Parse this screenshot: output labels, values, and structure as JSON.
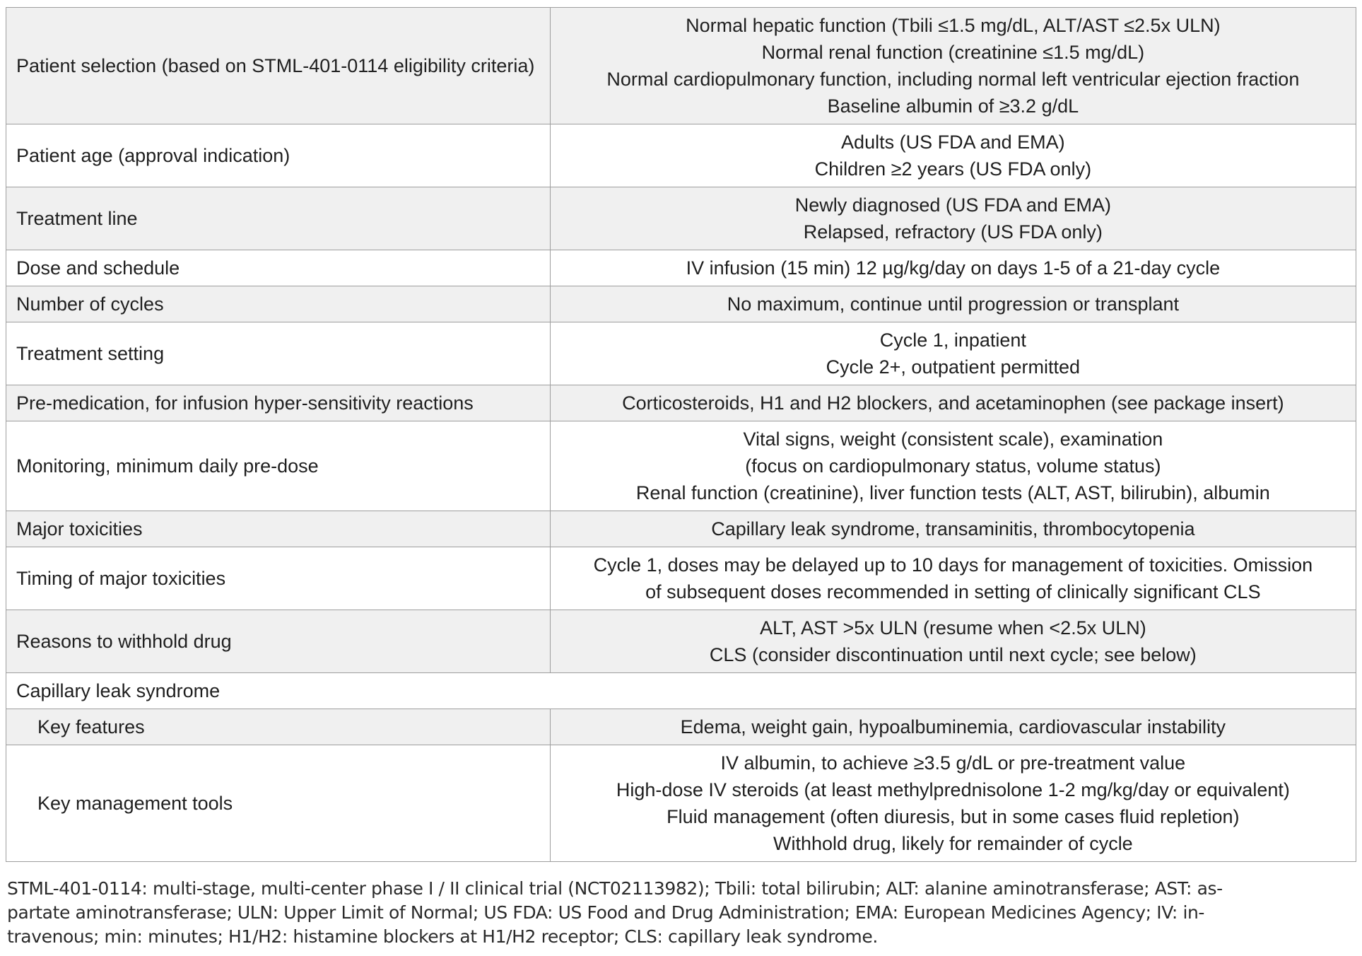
{
  "colors": {
    "row_stripe": "#f0f0f0",
    "row_plain": "#ffffff",
    "border": "#9e9e9e",
    "text": "#1f1f1f"
  },
  "table": {
    "rows": [
      {
        "label": "Patient selection (based on STML-401-0114 eligibility criteria)",
        "lines": [
          "Normal hepatic function (Tbili ≤1.5 mg/dL, ALT/AST ≤2.5x ULN)",
          "Normal renal function (creatinine ≤1.5 mg/dL)",
          "Normal cardiopulmonary function, including normal left ventricular ejection fraction",
          "Baseline albumin of ≥3.2 g/dL"
        ]
      },
      {
        "label": "Patient age (approval indication)",
        "lines": [
          "Adults (US FDA and EMA)",
          "Children ≥2 years (US FDA only)"
        ]
      },
      {
        "label": "Treatment line",
        "lines": [
          "Newly diagnosed (US FDA and EMA)",
          "Relapsed, refractory (US FDA only)"
        ]
      },
      {
        "label": "Dose and schedule",
        "lines": [
          "IV infusion (15 min) 12 µg/kg/day on days 1-5 of a 21-day cycle"
        ]
      },
      {
        "label": "Number of cycles",
        "lines": [
          "No maximum, continue until progression or transplant"
        ]
      },
      {
        "label": "Treatment setting",
        "lines": [
          "Cycle 1, inpatient",
          "Cycle 2+, outpatient permitted"
        ]
      },
      {
        "label": "Pre-medication, for infusion hyper-sensitivity reactions",
        "lines": [
          "Corticosteroids, H1 and H2 blockers, and acetaminophen (see package insert)"
        ]
      },
      {
        "label": "Monitoring, minimum daily pre-dose",
        "lines": [
          "Vital signs, weight (consistent scale), examination",
          "(focus on cardiopulmonary status, volume status)",
          "Renal function (creatinine), liver function tests (ALT, AST, bilirubin), albumin"
        ]
      },
      {
        "label": "Major toxicities",
        "lines": [
          "Capillary leak syndrome, transaminitis, thrombocytopenia"
        ]
      },
      {
        "label": "Timing of major toxicities",
        "lines": [
          "Cycle 1, doses may be delayed up to 10 days for management of toxicities. Omission",
          "of subsequent doses recommended in setting of clinically significant CLS"
        ]
      },
      {
        "label": "Reasons to withhold drug",
        "lines": [
          "ALT, AST >5x ULN (resume when <2.5x ULN)",
          "CLS (consider discontinuation until next cycle; see below)"
        ]
      },
      {
        "label": "Capillary leak syndrome",
        "lines": []
      },
      {
        "label": "Key features",
        "lines": [
          "Edema, weight gain, hypoalbuminemia, cardiovascular instability"
        ]
      },
      {
        "label": "Key management tools",
        "lines": [
          "IV albumin, to achieve ≥3.5 g/dL or pre-treatment value",
          "High-dose IV steroids (at least methylprednisolone 1-2 mg/kg/day or equivalent)",
          "Fluid management (often diuresis, but in some cases fluid repletion)",
          "Withhold drug, likely for remainder of cycle"
        ]
      }
    ]
  },
  "footnote": {
    "lines": [
      "STML-401-0114: multi-stage, multi-center phase I / II clinical trial (NCT02113982); Tbili: total bilirubin; ALT: alanine aminotransferase; AST: as-",
      "partate aminotransferase; ULN: Upper Limit of Normal; US FDA: US Food and Drug Administration; EMA: European Medicines Agency; IV: in-",
      "travenous; min: minutes; H1/H2: histamine blockers at H1/H2 receptor; CLS: capillary leak syndrome."
    ]
  }
}
